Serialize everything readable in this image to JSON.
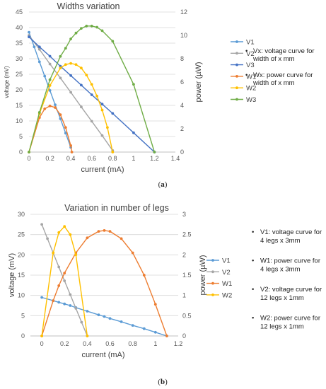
{
  "chart_data": [
    {
      "type": "line",
      "title": "Widths variation",
      "xlabel": "current (mA)",
      "ylabel": "voltage (mV)",
      "y2label": "power (µW)",
      "xlim": [
        0,
        1.4
      ],
      "ylim": [
        0,
        45
      ],
      "y2lim": [
        0,
        12
      ],
      "xticks": [
        "0",
        "0.2",
        "0.4",
        "0.6",
        "0.8",
        "1",
        "1.2",
        "1.4"
      ],
      "yticks": [
        "0",
        "5",
        "10",
        "15",
        "20",
        "25",
        "30",
        "35",
        "40",
        "45"
      ],
      "y2ticks": [
        "0",
        "2",
        "4",
        "6",
        "8",
        "10",
        "12"
      ],
      "caption_prefix": "(",
      "caption": "a",
      "caption_suffix": ")",
      "notes": [
        {
          "bullet": "•",
          "lines": [
            "Vx: voltage curve for",
            "width of x mm"
          ]
        },
        {
          "bullet": "•",
          "lines": [
            "Wx: power curve for",
            "width of x mm"
          ]
        }
      ],
      "series": [
        {
          "name": "V1",
          "axis": "left",
          "color": "#5B9BD5",
          "x": [
            0,
            0.05,
            0.1,
            0.15,
            0.2,
            0.25,
            0.3,
            0.35,
            0.4
          ],
          "y": [
            38.5,
            33.8,
            29,
            24.4,
            19.8,
            15.2,
            10.7,
            6.1,
            1.5
          ]
        },
        {
          "name": "V2",
          "axis": "left",
          "color": "#A5A5A5",
          "x": [
            0,
            0.1,
            0.2,
            0.3,
            0.4,
            0.5,
            0.6,
            0.7,
            0.8
          ],
          "y": [
            37.5,
            33,
            28.3,
            23.8,
            19.2,
            14.5,
            9.9,
            5.3,
            0.5
          ]
        },
        {
          "name": "V3",
          "axis": "left",
          "color": "#4472C4",
          "x": [
            0,
            0.1,
            0.2,
            0.3,
            0.4,
            0.5,
            0.6,
            0.7,
            0.8,
            1.0,
            1.2
          ],
          "y": [
            37,
            33.8,
            30.8,
            27.6,
            24.6,
            21.5,
            18.4,
            15.4,
            12.4,
            6.2,
            0
          ]
        },
        {
          "name": "W1",
          "axis": "right",
          "color": "#ED7D31",
          "x": [
            0,
            0.1,
            0.15,
            0.2,
            0.25,
            0.3,
            0.35,
            0.4,
            0.41
          ],
          "y": [
            0,
            2.95,
            3.7,
            3.95,
            3.82,
            3.2,
            2.1,
            0.55,
            0
          ]
        },
        {
          "name": "W2",
          "axis": "right",
          "color": "#FFC000",
          "x": [
            0,
            0.1,
            0.2,
            0.3,
            0.35,
            0.4,
            0.45,
            0.5,
            0.55,
            0.6,
            0.65,
            0.7,
            0.75,
            0.8
          ],
          "y": [
            0,
            3.3,
            5.7,
            7.2,
            7.5,
            7.6,
            7.5,
            7.2,
            6.6,
            5.8,
            4.8,
            3.6,
            2.1,
            0
          ]
        },
        {
          "name": "W3",
          "axis": "right",
          "color": "#70AD47",
          "x": [
            0,
            0.1,
            0.2,
            0.3,
            0.35,
            0.4,
            0.45,
            0.5,
            0.55,
            0.6,
            0.65,
            0.7,
            0.8,
            1.0,
            1.2
          ],
          "y": [
            0,
            3.4,
            6.2,
            8.2,
            8.9,
            9.7,
            10.2,
            10.6,
            10.8,
            10.8,
            10.7,
            10.4,
            9.5,
            5.8,
            0
          ]
        }
      ]
    },
    {
      "type": "line",
      "title": "Variation in number of legs",
      "xlabel": "current (mA)",
      "ylabel": "voltage (mV)",
      "y2label": "power (µW)",
      "xlim": [
        -0.1,
        1.2
      ],
      "ylim": [
        0,
        30
      ],
      "y2lim": [
        0,
        3
      ],
      "xticks": [
        "0",
        "0.2",
        "0.4",
        "0.6",
        "0.8",
        "1",
        "1.2"
      ],
      "yticks": [
        "0",
        "5",
        "10",
        "15",
        "20",
        "25",
        "30"
      ],
      "y2ticks": [
        "0",
        "0.5",
        "1",
        "1.5",
        "2",
        "2.5",
        "3"
      ],
      "caption_prefix": "(",
      "caption": "b",
      "caption_suffix": ")",
      "notes": [
        {
          "bullet": "•",
          "lines": [
            "V1: voltage curve for",
            "4 legs x 3mm"
          ]
        },
        {
          "bullet": "•",
          "lines": [
            "W1: power curve for",
            "4 legs x 3mm"
          ]
        },
        {
          "bullet": "•",
          "lines": [
            "V2: voltage curve for",
            "12 legs x 1mm"
          ]
        },
        {
          "bullet": "•",
          "lines": [
            "W2: power curve for",
            "12 legs x 1mm"
          ]
        }
      ],
      "series": [
        {
          "name": "V1",
          "axis": "left",
          "color": "#5B9BD5",
          "x": [
            0,
            0.1,
            0.15,
            0.2,
            0.25,
            0.3,
            0.4,
            0.5,
            0.55,
            0.6,
            0.7,
            0.8,
            0.9,
            1.0,
            1.1
          ],
          "y": [
            9.5,
            8.7,
            8.3,
            7.9,
            7.5,
            7.0,
            6.1,
            5.2,
            4.8,
            4.3,
            3.5,
            2.6,
            1.8,
            0.9,
            0
          ]
        },
        {
          "name": "V2",
          "axis": "left",
          "color": "#A5A5A5",
          "x": [
            0,
            0.05,
            0.1,
            0.15,
            0.2,
            0.25,
            0.3,
            0.35,
            0.4
          ],
          "y": [
            27.5,
            24,
            20.5,
            17,
            13.6,
            10.2,
            6.8,
            3.4,
            0
          ]
        },
        {
          "name": "W1",
          "axis": "right",
          "color": "#ED7D31",
          "x": [
            0,
            0.1,
            0.15,
            0.2,
            0.3,
            0.4,
            0.5,
            0.55,
            0.6,
            0.7,
            0.8,
            0.9,
            1.0,
            1.1
          ],
          "y": [
            0,
            0.87,
            1.24,
            1.55,
            2.05,
            2.42,
            2.58,
            2.6,
            2.58,
            2.4,
            2.05,
            1.5,
            0.78,
            0
          ]
        },
        {
          "name": "W2",
          "axis": "right",
          "color": "#FFC000",
          "x": [
            0,
            0.1,
            0.15,
            0.2,
            0.25,
            0.3,
            0.4
          ],
          "y": [
            0,
            2.05,
            2.55,
            2.7,
            2.5,
            2.0,
            0
          ]
        }
      ]
    }
  ]
}
